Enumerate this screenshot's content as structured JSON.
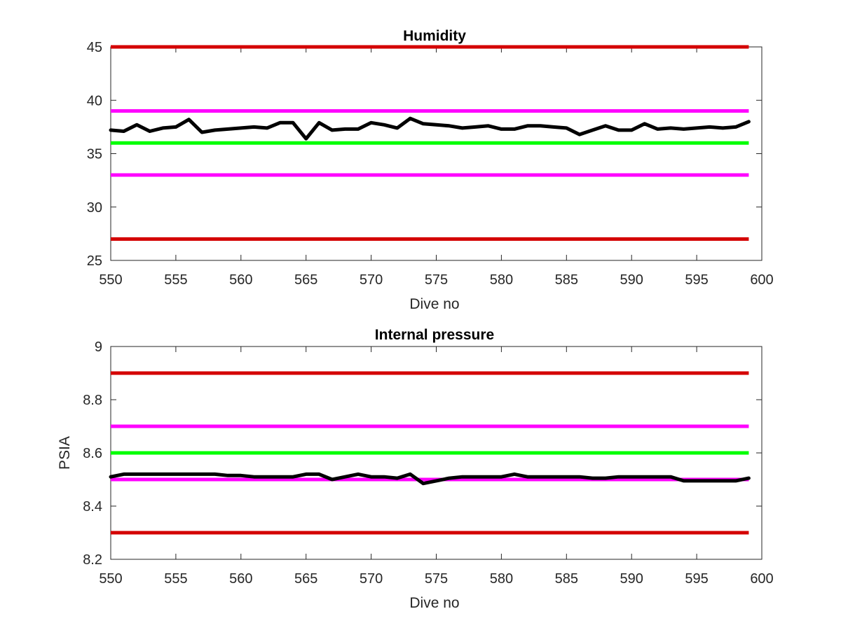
{
  "figure": {
    "background": "#ffffff",
    "axis_color": "#262626"
  },
  "chart_data": [
    {
      "type": "line",
      "title": "Humidity",
      "xlabel": "Dive no",
      "ylabel": "",
      "xlim": [
        550,
        600
      ],
      "ylim": [
        25,
        45
      ],
      "xticks": [
        550,
        555,
        560,
        565,
        570,
        575,
        580,
        585,
        590,
        595,
        600
      ],
      "yticks": [
        25,
        30,
        35,
        40,
        45
      ],
      "tick_labels_x": [
        "550",
        "555",
        "560",
        "565",
        "570",
        "575",
        "580",
        "585",
        "590",
        "595",
        "600"
      ],
      "tick_labels_y": [
        "25",
        "30",
        "35",
        "40",
        "45"
      ],
      "grid": false,
      "legend": "none",
      "reference_lines": [
        {
          "value": 45,
          "color": "#d40000",
          "x_range": [
            550,
            599
          ]
        },
        {
          "value": 39,
          "color": "#ff00ff",
          "x_range": [
            550,
            599
          ]
        },
        {
          "value": 36,
          "color": "#00ff00",
          "x_range": [
            550,
            599
          ]
        },
        {
          "value": 33,
          "color": "#ff00ff",
          "x_range": [
            550,
            599
          ]
        },
        {
          "value": 27,
          "color": "#d40000",
          "x_range": [
            550,
            599
          ]
        }
      ],
      "series": [
        {
          "color": "#000000",
          "x": [
            550,
            551,
            552,
            553,
            554,
            555,
            556,
            557,
            558,
            559,
            560,
            561,
            562,
            563,
            564,
            565,
            566,
            567,
            568,
            569,
            570,
            571,
            572,
            573,
            574,
            575,
            576,
            577,
            578,
            579,
            580,
            581,
            582,
            583,
            584,
            585,
            586,
            587,
            588,
            589,
            590,
            591,
            592,
            593,
            594,
            595,
            596,
            597,
            598,
            599
          ],
          "values": [
            37.2,
            37.1,
            37.7,
            37.1,
            37.4,
            37.5,
            38.2,
            37.0,
            37.2,
            37.3,
            37.4,
            37.5,
            37.4,
            37.9,
            37.9,
            36.4,
            37.9,
            37.2,
            37.3,
            37.3,
            37.9,
            37.7,
            37.4,
            38.3,
            37.8,
            37.7,
            37.6,
            37.4,
            37.5,
            37.6,
            37.3,
            37.3,
            37.6,
            37.6,
            37.5,
            37.4,
            36.8,
            37.2,
            37.6,
            37.2,
            37.2,
            37.8,
            37.3,
            37.4,
            37.3,
            37.4,
            37.5,
            37.4,
            37.5,
            38.0
          ]
        }
      ]
    },
    {
      "type": "line",
      "title": "Internal pressure",
      "xlabel": "Dive no",
      "ylabel": "PSIA",
      "xlim": [
        550,
        600
      ],
      "ylim": [
        8.2,
        9.0
      ],
      "xticks": [
        550,
        555,
        560,
        565,
        570,
        575,
        580,
        585,
        590,
        595,
        600
      ],
      "yticks": [
        8.2,
        8.4,
        8.6,
        8.8,
        9.0
      ],
      "tick_labels_x": [
        "550",
        "555",
        "560",
        "565",
        "570",
        "575",
        "580",
        "585",
        "590",
        "595",
        "600"
      ],
      "tick_labels_y": [
        "8.2",
        "8.4",
        "8.6",
        "8.8",
        "9"
      ],
      "grid": false,
      "legend": "none",
      "reference_lines": [
        {
          "value": 8.9,
          "color": "#d40000",
          "x_range": [
            550,
            599
          ]
        },
        {
          "value": 8.7,
          "color": "#ff00ff",
          "x_range": [
            550,
            599
          ]
        },
        {
          "value": 8.6,
          "color": "#00ff00",
          "x_range": [
            550,
            599
          ]
        },
        {
          "value": 8.5,
          "color": "#ff00ff",
          "x_range": [
            550,
            599
          ]
        },
        {
          "value": 8.3,
          "color": "#d40000",
          "x_range": [
            550,
            599
          ]
        }
      ],
      "series": [
        {
          "color": "#000000",
          "x": [
            550,
            551,
            552,
            553,
            554,
            555,
            556,
            557,
            558,
            559,
            560,
            561,
            562,
            563,
            564,
            565,
            566,
            567,
            568,
            569,
            570,
            571,
            572,
            573,
            574,
            575,
            576,
            577,
            578,
            579,
            580,
            581,
            582,
            583,
            584,
            585,
            586,
            587,
            588,
            589,
            590,
            591,
            592,
            593,
            594,
            595,
            596,
            597,
            598,
            599
          ],
          "values": [
            8.51,
            8.52,
            8.52,
            8.52,
            8.52,
            8.52,
            8.52,
            8.52,
            8.52,
            8.515,
            8.515,
            8.51,
            8.51,
            8.51,
            8.51,
            8.52,
            8.52,
            8.5,
            8.51,
            8.52,
            8.51,
            8.51,
            8.505,
            8.52,
            8.485,
            8.495,
            8.505,
            8.51,
            8.51,
            8.51,
            8.51,
            8.52,
            8.51,
            8.51,
            8.51,
            8.51,
            8.51,
            8.505,
            8.505,
            8.51,
            8.51,
            8.51,
            8.51,
            8.51,
            8.495,
            8.495,
            8.495,
            8.495,
            8.495,
            8.505
          ]
        }
      ]
    }
  ]
}
